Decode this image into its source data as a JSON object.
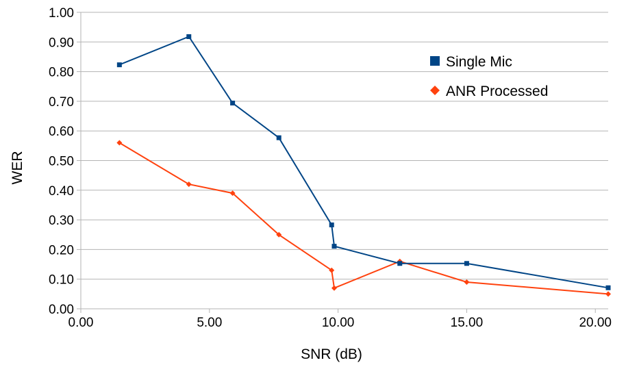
{
  "chart_data": {
    "type": "scatter",
    "xlabel": "SNR (dB)",
    "ylabel": "WER",
    "xlim": [
      0,
      20.5
    ],
    "ylim": [
      0,
      1
    ],
    "x_ticks": [
      "0.00",
      "5.00",
      "10.00",
      "15.00",
      "20.00"
    ],
    "x_tick_values": [
      0,
      5,
      10,
      15,
      20
    ],
    "y_ticks": [
      "0.00",
      "0.10",
      "0.20",
      "0.30",
      "0.40",
      "0.50",
      "0.60",
      "0.70",
      "0.80",
      "0.90",
      "1.00"
    ],
    "y_tick_values": [
      0,
      0.1,
      0.2,
      0.3,
      0.4,
      0.5,
      0.6,
      0.7,
      0.8,
      0.9,
      1.0
    ],
    "grid": "horizontal",
    "legend_position": "top-right",
    "series": [
      {
        "name": "Single Mic",
        "color": "#004586",
        "marker": "square",
        "points": [
          {
            "x": 1.5,
            "y": 0.823
          },
          {
            "x": 4.2,
            "y": 0.918
          },
          {
            "x": 5.9,
            "y": 0.694
          },
          {
            "x": 7.7,
            "y": 0.577
          },
          {
            "x": 9.75,
            "y": 0.283
          },
          {
            "x": 9.85,
            "y": 0.211
          },
          {
            "x": 12.4,
            "y": 0.153
          },
          {
            "x": 15.0,
            "y": 0.153
          },
          {
            "x": 20.5,
            "y": 0.071
          }
        ]
      },
      {
        "name": "ANR Processed",
        "color": "#ff420e",
        "marker": "diamond",
        "points": [
          {
            "x": 1.5,
            "y": 0.56
          },
          {
            "x": 4.2,
            "y": 0.42
          },
          {
            "x": 5.9,
            "y": 0.39
          },
          {
            "x": 7.7,
            "y": 0.25
          },
          {
            "x": 9.75,
            "y": 0.13
          },
          {
            "x": 9.85,
            "y": 0.07
          },
          {
            "x": 12.4,
            "y": 0.16
          },
          {
            "x": 15.0,
            "y": 0.09
          },
          {
            "x": 20.5,
            "y": 0.05
          }
        ]
      }
    ]
  }
}
